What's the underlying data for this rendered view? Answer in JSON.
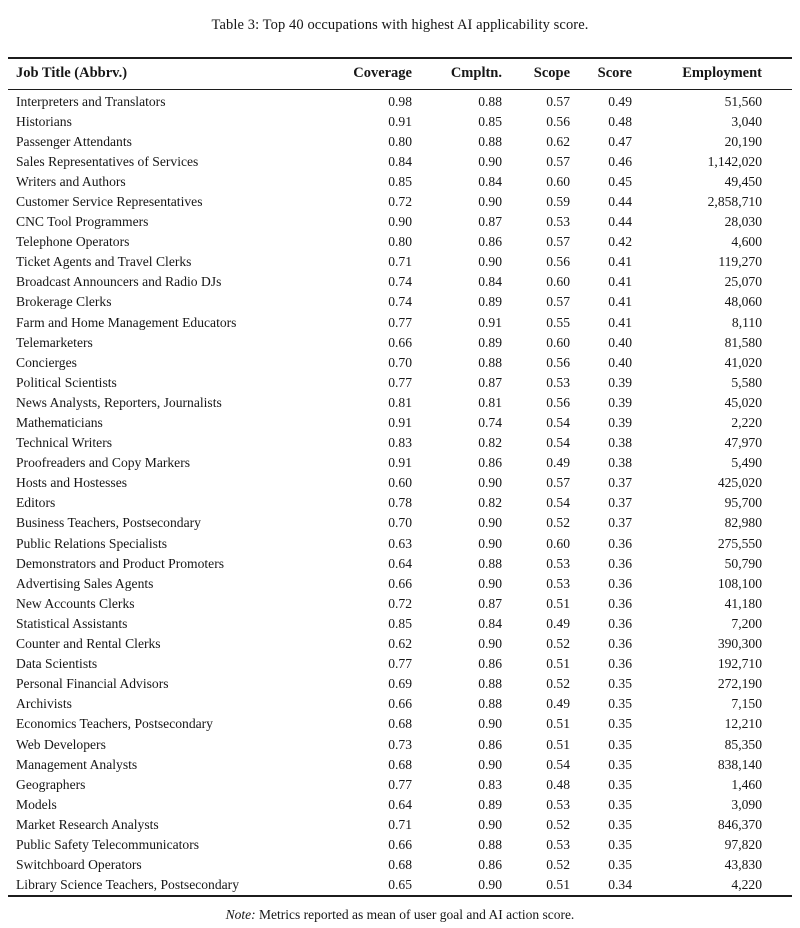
{
  "title": "Table 3: Top 40 occupations with highest AI applicability score.",
  "note": {
    "label": "Note:",
    "text": " Metrics reported as mean of user goal and AI action score."
  },
  "colors": {
    "background": "#ffffff",
    "text": "#161616",
    "rule": "#1c1c1c"
  },
  "table": {
    "headers": [
      "Job Title (Abbrv.)",
      "Coverage",
      "Cmpltn.",
      "Scope",
      "Score",
      "Employment"
    ],
    "rows": [
      [
        "Interpreters and Translators",
        "0.98",
        "0.88",
        "0.57",
        "0.49",
        "51,560"
      ],
      [
        "Historians",
        "0.91",
        "0.85",
        "0.56",
        "0.48",
        "3,040"
      ],
      [
        "Passenger Attendants",
        "0.80",
        "0.88",
        "0.62",
        "0.47",
        "20,190"
      ],
      [
        "Sales Representatives of Services",
        "0.84",
        "0.90",
        "0.57",
        "0.46",
        "1,142,020"
      ],
      [
        "Writers and Authors",
        "0.85",
        "0.84",
        "0.60",
        "0.45",
        "49,450"
      ],
      [
        "Customer Service Representatives",
        "0.72",
        "0.90",
        "0.59",
        "0.44",
        "2,858,710"
      ],
      [
        "CNC Tool Programmers",
        "0.90",
        "0.87",
        "0.53",
        "0.44",
        "28,030"
      ],
      [
        "Telephone Operators",
        "0.80",
        "0.86",
        "0.57",
        "0.42",
        "4,600"
      ],
      [
        "Ticket Agents and Travel Clerks",
        "0.71",
        "0.90",
        "0.56",
        "0.41",
        "119,270"
      ],
      [
        "Broadcast Announcers and Radio DJs",
        "0.74",
        "0.84",
        "0.60",
        "0.41",
        "25,070"
      ],
      [
        "Brokerage Clerks",
        "0.74",
        "0.89",
        "0.57",
        "0.41",
        "48,060"
      ],
      [
        "Farm and Home Management Educators",
        "0.77",
        "0.91",
        "0.55",
        "0.41",
        "8,110"
      ],
      [
        "Telemarketers",
        "0.66",
        "0.89",
        "0.60",
        "0.40",
        "81,580"
      ],
      [
        "Concierges",
        "0.70",
        "0.88",
        "0.56",
        "0.40",
        "41,020"
      ],
      [
        "Political Scientists",
        "0.77",
        "0.87",
        "0.53",
        "0.39",
        "5,580"
      ],
      [
        "News Analysts, Reporters, Journalists",
        "0.81",
        "0.81",
        "0.56",
        "0.39",
        "45,020"
      ],
      [
        "Mathematicians",
        "0.91",
        "0.74",
        "0.54",
        "0.39",
        "2,220"
      ],
      [
        "Technical Writers",
        "0.83",
        "0.82",
        "0.54",
        "0.38",
        "47,970"
      ],
      [
        "Proofreaders and Copy Markers",
        "0.91",
        "0.86",
        "0.49",
        "0.38",
        "5,490"
      ],
      [
        "Hosts and Hostesses",
        "0.60",
        "0.90",
        "0.57",
        "0.37",
        "425,020"
      ],
      [
        "Editors",
        "0.78",
        "0.82",
        "0.54",
        "0.37",
        "95,700"
      ],
      [
        "Business Teachers, Postsecondary",
        "0.70",
        "0.90",
        "0.52",
        "0.37",
        "82,980"
      ],
      [
        "Public Relations Specialists",
        "0.63",
        "0.90",
        "0.60",
        "0.36",
        "275,550"
      ],
      [
        "Demonstrators and Product Promoters",
        "0.64",
        "0.88",
        "0.53",
        "0.36",
        "50,790"
      ],
      [
        "Advertising Sales Agents",
        "0.66",
        "0.90",
        "0.53",
        "0.36",
        "108,100"
      ],
      [
        "New Accounts Clerks",
        "0.72",
        "0.87",
        "0.51",
        "0.36",
        "41,180"
      ],
      [
        "Statistical Assistants",
        "0.85",
        "0.84",
        "0.49",
        "0.36",
        "7,200"
      ],
      [
        "Counter and Rental Clerks",
        "0.62",
        "0.90",
        "0.52",
        "0.36",
        "390,300"
      ],
      [
        "Data Scientists",
        "0.77",
        "0.86",
        "0.51",
        "0.36",
        "192,710"
      ],
      [
        "Personal Financial Advisors",
        "0.69",
        "0.88",
        "0.52",
        "0.35",
        "272,190"
      ],
      [
        "Archivists",
        "0.66",
        "0.88",
        "0.49",
        "0.35",
        "7,150"
      ],
      [
        "Economics Teachers, Postsecondary",
        "0.68",
        "0.90",
        "0.51",
        "0.35",
        "12,210"
      ],
      [
        "Web Developers",
        "0.73",
        "0.86",
        "0.51",
        "0.35",
        "85,350"
      ],
      [
        "Management Analysts",
        "0.68",
        "0.90",
        "0.54",
        "0.35",
        "838,140"
      ],
      [
        "Geographers",
        "0.77",
        "0.83",
        "0.48",
        "0.35",
        "1,460"
      ],
      [
        "Models",
        "0.64",
        "0.89",
        "0.53",
        "0.35",
        "3,090"
      ],
      [
        "Market Research Analysts",
        "0.71",
        "0.90",
        "0.52",
        "0.35",
        "846,370"
      ],
      [
        "Public Safety Telecommunicators",
        "0.66",
        "0.88",
        "0.53",
        "0.35",
        "97,820"
      ],
      [
        "Switchboard Operators",
        "0.68",
        "0.86",
        "0.52",
        "0.35",
        "43,830"
      ],
      [
        "Library Science Teachers, Postsecondary",
        "0.65",
        "0.90",
        "0.51",
        "0.34",
        "4,220"
      ]
    ]
  }
}
